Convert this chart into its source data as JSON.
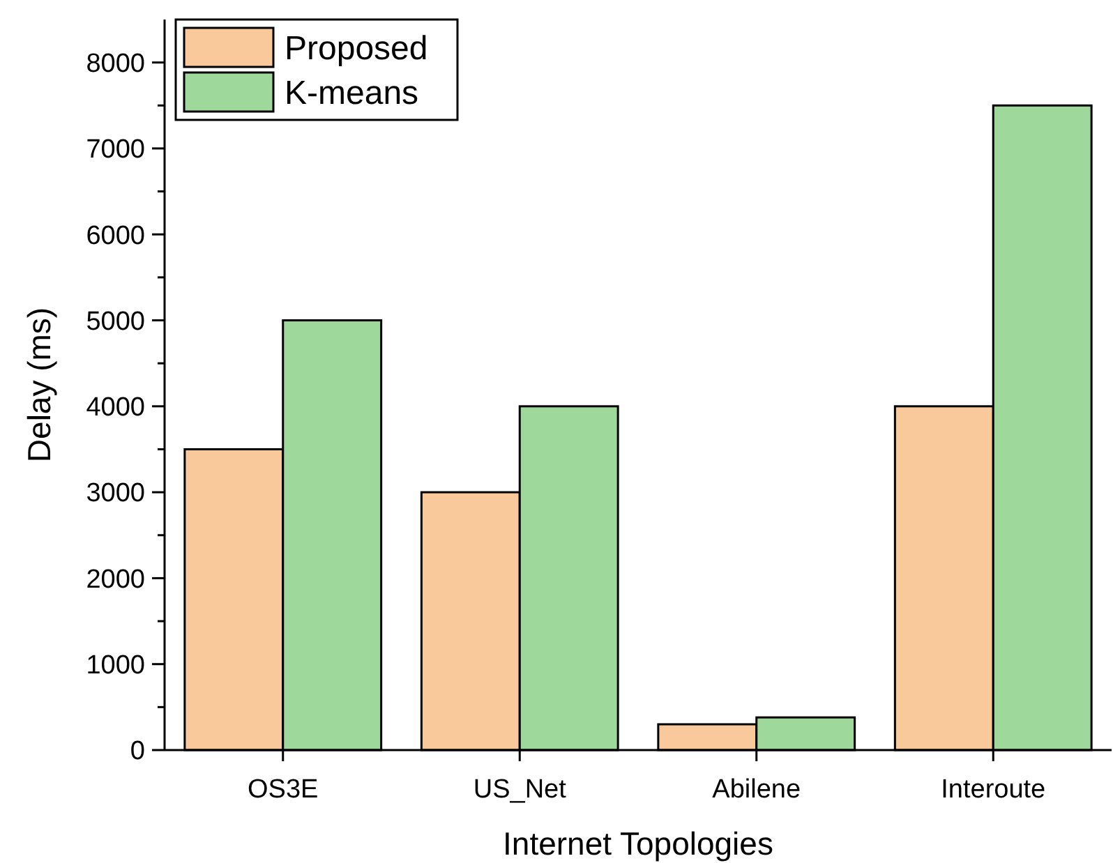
{
  "chart_data": {
    "type": "bar",
    "xlabel": "Internet Topologies",
    "ylabel": "Delay (ms)",
    "categories": [
      "OS3E",
      "US_Net",
      "Abilene",
      "Interoute"
    ],
    "series": [
      {
        "name": "Proposed",
        "color": "#f9c89b",
        "values": [
          3500,
          3000,
          300,
          4000
        ]
      },
      {
        "name": "K-means",
        "color": "#9ed89b",
        "values": [
          5000,
          4000,
          380,
          7500
        ]
      }
    ],
    "ylim": [
      0,
      8500
    ],
    "yticks": [
      0,
      {
        "value": 500,
        "label": null
      },
      1000,
      {
        "value": 1500,
        "label": null
      },
      2000,
      {
        "value": 2500,
        "label": null
      },
      3000,
      {
        "value": 3500,
        "label": null
      },
      4000,
      {
        "value": 4500,
        "label": null
      },
      5000,
      {
        "value": 5500,
        "label": null
      },
      6000,
      {
        "value": 6500,
        "label": null
      },
      7000,
      {
        "value": 7500,
        "label": null
      },
      8000
    ],
    "grid": false,
    "legend": "top left"
  }
}
